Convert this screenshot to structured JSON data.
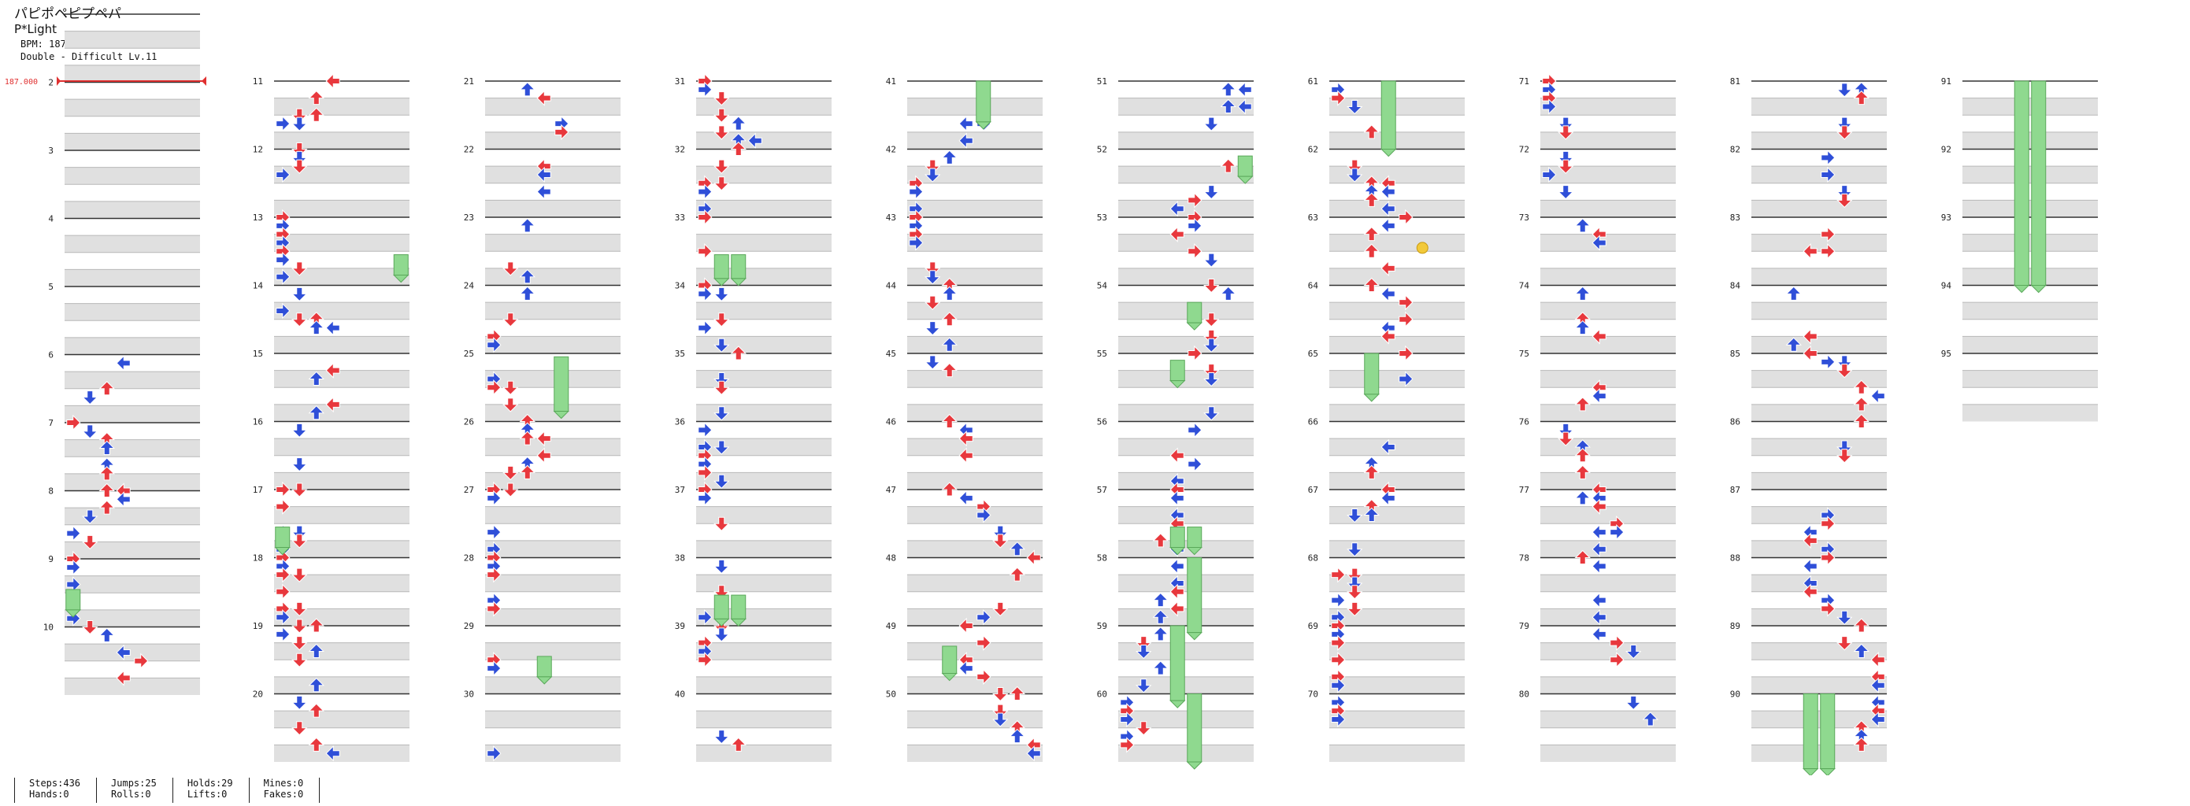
{
  "song": {
    "title": "パピポペピプペパ",
    "artist": "P*Light",
    "bpm_label": "BPM: 187",
    "difficulty_label": "Double - Difficult Lv.11"
  },
  "bpm_marker": {
    "label": "187.000"
  },
  "measures": {
    "labels": [
      "2",
      "3",
      "4",
      "5",
      "6",
      "7",
      "8",
      "9",
      "10",
      "11",
      "12",
      "13",
      "14",
      "15",
      "16",
      "17",
      "18",
      "19",
      "20",
      "21",
      "22",
      "23",
      "24",
      "25",
      "26",
      "27",
      "28",
      "29",
      "30",
      "31",
      "32",
      "33",
      "34",
      "35",
      "36",
      "37",
      "38",
      "39",
      "40",
      "41",
      "42",
      "43",
      "44",
      "45",
      "46",
      "47",
      "48",
      "49",
      "50",
      "51",
      "52",
      "53",
      "54",
      "55",
      "56",
      "57",
      "58",
      "59",
      "60",
      "61",
      "62",
      "63",
      "64",
      "65",
      "66",
      "67",
      "68",
      "69",
      "70",
      "71",
      "72",
      "73",
      "74",
      "75",
      "76",
      "77",
      "78",
      "79",
      "80",
      "81",
      "82",
      "83",
      "84",
      "85",
      "86",
      "87",
      "88",
      "89",
      "90",
      "91",
      "92",
      "93",
      "94",
      "95"
    ]
  },
  "colors": {
    "arrow_4th": "#e8383d",
    "arrow_8th": "#2f4fd8",
    "hold_body": "#8fd98f",
    "mine": "#f2c93a",
    "bpm_line": "#e03030",
    "lane_stripe": "#e0e0e0"
  },
  "stats": [
    {
      "line1": "Steps:436",
      "line2": "Hands:0"
    },
    {
      "line1": "Jumps:25",
      "line2": "Rolls:0"
    },
    {
      "line1": "Holds:29",
      "line2": "Lifts:0"
    },
    {
      "line1": "Mines:0",
      "line2": "Fakes:0"
    }
  ]
}
